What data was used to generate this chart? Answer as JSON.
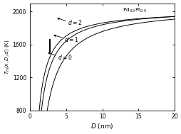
{
  "xlabel": "$D$ (nm)",
  "ylabel": "$T_{\\rm m}(x, D, d)$ (K)",
  "xlim": [
    0,
    20
  ],
  "ylim": [
    800,
    2100
  ],
  "yticks": [
    800,
    1200,
    1600,
    2000
  ],
  "xticks": [
    0,
    5,
    10,
    15,
    20
  ],
  "annotation": "Pd$_{0.5}$Pt$_{0.5}$",
  "curves": [
    {
      "D0": 0.85,
      "Tinf": 2020,
      "alpha": 0.92
    },
    {
      "D0": 1.05,
      "Tinf": 2040,
      "alpha": 0.93
    },
    {
      "D0": 1.55,
      "Tinf": 2060,
      "alpha": 0.945
    }
  ],
  "line_color": "#000000",
  "background_color": "#ffffff",
  "figsize": [
    2.55,
    1.89
  ],
  "dpi": 100,
  "squares_x": 2.75,
  "squares_T_min": 1510,
  "squares_T_max": 1660,
  "squares_n": 10
}
